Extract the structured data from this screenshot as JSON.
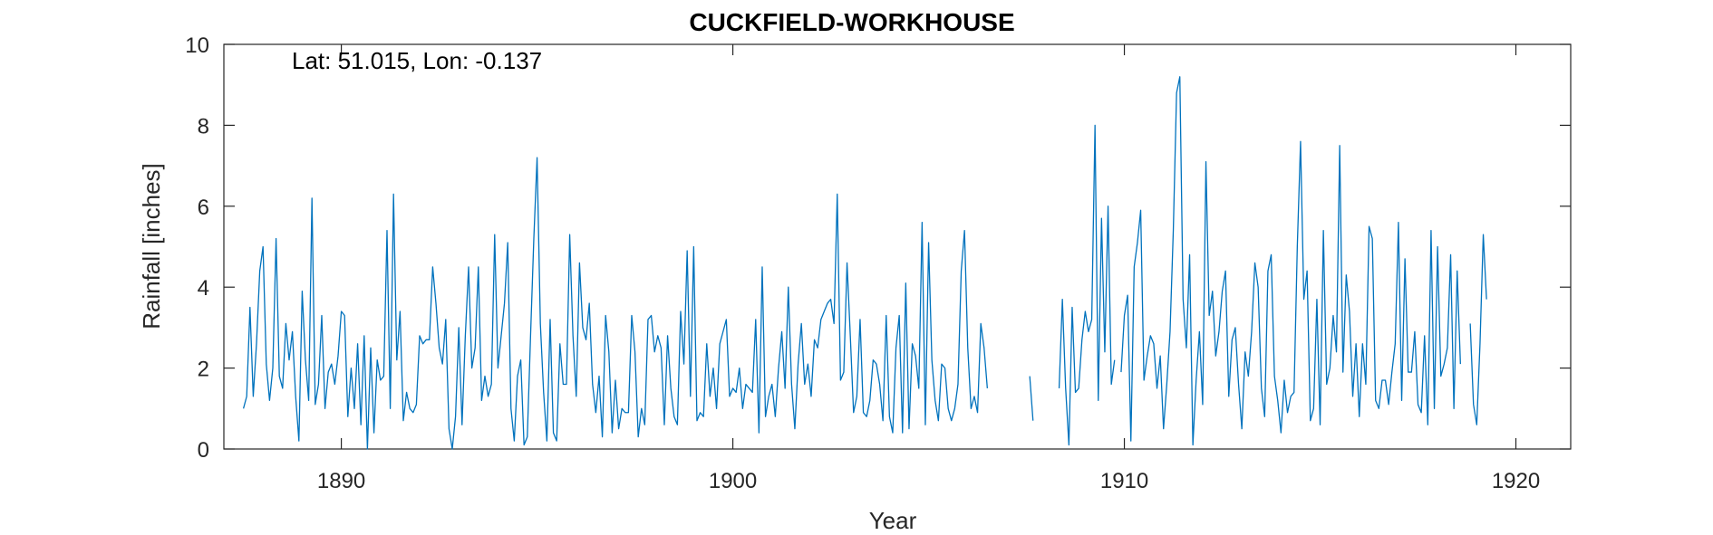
{
  "chart_data": {
    "type": "line",
    "title": "CUCKFIELD-WORKHOUSE",
    "annotation": "Lat: 51.015, Lon: -0.137",
    "xlabel": "Year",
    "ylabel": "Rainfall [inches]",
    "xlim": [
      1887,
      1921.4
    ],
    "ylim": [
      0,
      10
    ],
    "xticks": [
      1890,
      1900,
      1910,
      1920
    ],
    "yticks": [
      0,
      2,
      4,
      6,
      8,
      10
    ],
    "grid": false,
    "line_color": "#0072BD",
    "series": [
      {
        "x_start": 1887.5,
        "step_months": 1,
        "values": [
          1.0,
          1.3,
          3.5,
          1.3,
          2.6,
          4.4,
          5.0,
          2.1,
          1.2,
          2.0,
          5.2,
          1.8,
          1.5,
          3.1,
          2.2,
          2.9,
          1.3,
          0.2,
          3.9,
          2.2,
          1.2,
          6.2,
          1.1,
          1.6,
          3.3,
          1.0,
          1.9,
          2.1,
          1.6,
          2.3,
          3.4,
          3.3,
          0.8,
          2.0,
          1.0,
          2.6,
          0.6,
          2.8,
          0.0,
          2.5,
          0.4,
          2.2,
          1.7,
          1.8,
          5.4,
          1.0,
          6.3,
          2.2,
          3.4,
          0.7,
          1.4,
          1.0,
          0.9,
          1.1,
          2.8,
          2.6,
          2.7,
          2.7,
          4.5,
          3.6,
          2.5,
          2.1,
          3.2,
          0.5,
          0.0,
          0.8,
          3.0,
          0.6,
          2.8,
          4.5,
          2.0,
          2.5,
          4.5,
          1.2,
          1.8,
          1.3,
          1.6,
          5.3,
          2.0,
          2.8,
          3.6,
          5.1,
          1.0,
          0.2,
          1.8,
          2.2,
          0.1,
          0.3,
          2.8,
          5.2,
          7.2,
          3.1,
          1.4,
          0.2,
          3.2,
          0.4,
          0.2,
          2.6,
          1.6,
          1.6,
          5.3,
          2.8,
          1.3,
          4.6,
          3.0,
          2.7,
          3.6,
          1.6,
          0.9,
          1.8,
          0.3,
          3.3,
          2.4,
          0.4,
          1.7,
          0.5,
          1.0,
          0.9,
          0.9,
          3.3,
          2.4,
          0.3,
          1.0,
          0.6,
          3.2,
          3.3,
          2.4,
          2.8,
          2.5,
          0.6,
          2.8,
          1.5,
          0.8,
          0.6,
          3.4,
          2.1,
          4.9,
          1.3,
          5.0,
          0.7,
          0.9,
          0.8,
          2.6,
          1.3,
          2.0,
          1.0,
          2.6,
          2.9,
          3.2,
          1.3,
          1.5,
          1.4,
          2.0,
          1.0,
          1.6,
          1.5,
          1.4,
          3.2,
          0.4,
          4.5,
          0.8,
          1.3,
          1.6,
          0.8,
          2.0,
          2.9,
          1.5,
          4.0,
          1.6,
          0.5,
          2.1,
          3.1,
          1.6,
          2.1,
          1.3,
          2.7,
          2.5,
          3.2,
          3.4,
          3.6,
          3.7,
          3.1,
          6.3,
          1.7,
          1.9,
          4.6,
          2.8,
          0.9,
          1.3,
          3.2,
          0.9,
          0.8,
          1.2,
          2.2,
          2.1,
          1.6,
          0.7,
          3.3,
          0.8,
          0.4,
          2.5,
          3.3,
          0.4,
          4.1,
          0.5,
          2.6,
          2.3,
          1.5,
          5.6,
          0.6,
          5.1,
          2.2,
          1.2,
          0.7,
          2.1,
          2.0,
          1.0,
          0.7,
          1.0,
          1.6,
          4.4,
          5.4,
          2.5,
          1.0,
          1.3,
          0.9,
          3.1,
          2.5,
          1.5,
          null,
          null,
          null,
          null,
          null,
          null,
          null,
          null,
          null,
          null,
          null,
          null,
          1.8,
          0.7,
          null,
          null,
          null,
          null,
          null,
          null,
          null,
          1.5,
          3.7,
          1.5,
          0.1,
          3.5,
          1.4,
          1.5,
          2.7,
          3.4,
          2.9,
          3.2,
          8.0,
          1.2,
          5.7,
          2.4,
          6.0,
          1.6,
          2.2,
          null,
          1.9,
          3.3,
          3.8,
          0.2,
          4.5,
          5.1,
          5.9,
          1.7,
          2.3,
          2.8,
          2.6,
          1.5,
          2.3,
          0.5,
          1.6,
          2.9,
          5.4,
          8.8,
          9.2,
          3.7,
          2.5,
          4.8,
          0.1,
          1.7,
          2.9,
          1.1,
          7.1,
          3.3,
          3.9,
          2.3,
          2.9,
          3.9,
          4.4,
          1.3,
          2.7,
          3.0,
          1.6,
          0.5,
          2.4,
          1.8,
          2.9,
          4.6,
          4.0,
          1.5,
          0.8,
          4.4,
          4.8,
          1.8,
          1.2,
          0.4,
          1.7,
          0.9,
          1.3,
          1.4,
          5.0,
          7.6,
          3.7,
          4.4,
          0.7,
          1.0,
          3.7,
          0.6,
          5.4,
          1.6,
          2.0,
          3.3,
          2.4,
          7.5,
          1.9,
          4.3,
          3.4,
          1.3,
          2.6,
          0.8,
          2.6,
          1.6,
          5.5,
          5.2,
          1.2,
          1.0,
          1.7,
          1.7,
          1.1,
          1.9,
          2.6,
          5.6,
          1.2,
          4.7,
          1.9,
          1.9,
          2.9,
          1.1,
          0.9,
          2.8,
          0.6,
          5.4,
          1.0,
          5.0,
          1.8,
          2.1,
          2.5,
          4.8,
          1.0,
          4.4,
          2.1,
          null,
          null,
          3.1,
          1.1,
          0.6,
          2.6,
          5.3,
          3.7
        ]
      }
    ]
  }
}
